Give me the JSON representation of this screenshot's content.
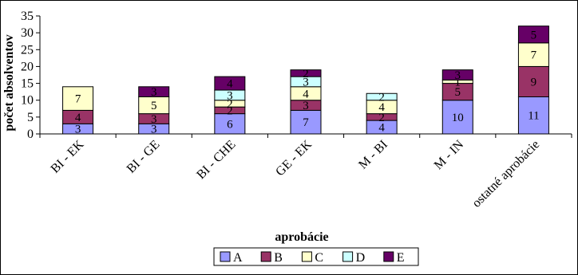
{
  "chart_data": {
    "type": "bar",
    "stacked": true,
    "categories": [
      "BI - EK",
      "BI - GE",
      "BI - CHE",
      "GE - EK",
      "M - BI",
      "M - IN",
      "ostatné aprobácie"
    ],
    "series": [
      {
        "name": "A",
        "color": "#9999FF",
        "values": [
          3,
          3,
          6,
          7,
          4,
          10,
          11
        ]
      },
      {
        "name": "B",
        "color": "#993366",
        "values": [
          4,
          3,
          2,
          3,
          2,
          5,
          9
        ]
      },
      {
        "name": "C",
        "color": "#FFFFCC",
        "values": [
          7,
          5,
          2,
          4,
          4,
          1,
          7
        ]
      },
      {
        "name": "D",
        "color": "#CCFFFF",
        "values": [
          0,
          0,
          3,
          3,
          2,
          0,
          0
        ]
      },
      {
        "name": "E",
        "color": "#660066",
        "values": [
          0,
          3,
          4,
          2,
          0,
          3,
          5
        ]
      }
    ],
    "xlabel": "aprobácie",
    "ylabel": "počet absolventov",
    "ylim": [
      0,
      35
    ],
    "yticks": [
      0,
      5,
      10,
      15,
      20,
      25,
      30,
      35
    ],
    "grid": false,
    "legend_position": "bottom"
  }
}
